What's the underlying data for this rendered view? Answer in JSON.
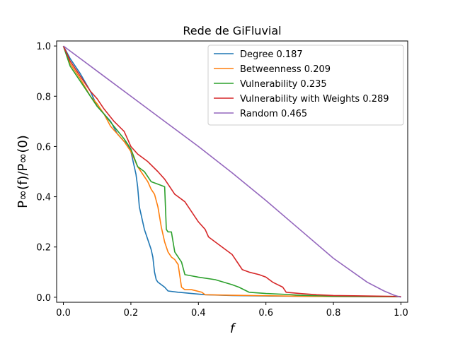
{
  "chart_data": {
    "type": "line",
    "title": "Rede de GiFluvial",
    "xlabel": "f",
    "ylabel": "P∞(f)/P∞(0)",
    "xlim": [
      -0.02,
      1.02
    ],
    "ylim": [
      -0.02,
      1.02
    ],
    "xticks": [
      0.0,
      0.2,
      0.4,
      0.6,
      0.8,
      1.0
    ],
    "xtick_labels": [
      "0.0",
      "0.2",
      "0.4",
      "0.6",
      "0.8",
      "1.0"
    ],
    "yticks": [
      0.0,
      0.2,
      0.4,
      0.6,
      0.8,
      1.0
    ],
    "ytick_labels": [
      "0.0",
      "0.2",
      "0.4",
      "0.6",
      "0.8",
      "1.0"
    ],
    "grid": false,
    "legend_position": "top-right",
    "series": [
      {
        "name": "Degree 0.187",
        "color": "#1f77b4",
        "x": [
          0,
          0.02,
          0.05,
          0.08,
          0.1,
          0.12,
          0.14,
          0.16,
          0.18,
          0.19,
          0.2,
          0.205,
          0.21,
          0.215,
          0.22,
          0.225,
          0.23,
          0.235,
          0.24,
          0.25,
          0.26,
          0.265,
          0.27,
          0.275,
          0.28,
          0.3,
          0.31,
          0.34,
          0.38,
          0.42,
          0.5,
          0.6,
          0.7,
          0.8,
          1.0
        ],
        "y": [
          1.0,
          0.95,
          0.89,
          0.82,
          0.76,
          0.73,
          0.7,
          0.65,
          0.62,
          0.61,
          0.58,
          0.55,
          0.52,
          0.49,
          0.44,
          0.36,
          0.33,
          0.3,
          0.27,
          0.23,
          0.19,
          0.16,
          0.1,
          0.07,
          0.06,
          0.04,
          0.025,
          0.02,
          0.015,
          0.01,
          0.007,
          0.005,
          0.004,
          0.003,
          0.002
        ]
      },
      {
        "name": "Betweenness 0.209",
        "color": "#ff7f0e",
        "x": [
          0,
          0.02,
          0.05,
          0.08,
          0.1,
          0.12,
          0.14,
          0.16,
          0.18,
          0.2,
          0.21,
          0.22,
          0.24,
          0.25,
          0.26,
          0.27,
          0.28,
          0.29,
          0.3,
          0.31,
          0.32,
          0.33,
          0.34,
          0.35,
          0.36,
          0.38,
          0.41,
          0.42,
          0.5,
          0.6,
          0.7,
          0.8,
          1.0
        ],
        "y": [
          1.0,
          0.93,
          0.87,
          0.8,
          0.77,
          0.73,
          0.68,
          0.65,
          0.62,
          0.58,
          0.55,
          0.52,
          0.48,
          0.46,
          0.43,
          0.41,
          0.36,
          0.28,
          0.22,
          0.18,
          0.16,
          0.15,
          0.13,
          0.04,
          0.03,
          0.03,
          0.02,
          0.01,
          0.008,
          0.006,
          0.004,
          0.003,
          0.002
        ]
      },
      {
        "name": "Vulnerability 0.235",
        "color": "#2ca02c",
        "x": [
          0,
          0.02,
          0.05,
          0.08,
          0.1,
          0.12,
          0.15,
          0.18,
          0.2,
          0.22,
          0.24,
          0.26,
          0.28,
          0.3,
          0.305,
          0.31,
          0.32,
          0.33,
          0.34,
          0.35,
          0.36,
          0.38,
          0.4,
          0.45,
          0.5,
          0.52,
          0.55,
          0.6,
          0.65,
          0.7,
          0.75,
          0.8,
          1.0
        ],
        "y": [
          1.0,
          0.92,
          0.86,
          0.8,
          0.76,
          0.73,
          0.68,
          0.63,
          0.59,
          0.52,
          0.5,
          0.46,
          0.45,
          0.44,
          0.27,
          0.26,
          0.26,
          0.18,
          0.16,
          0.14,
          0.09,
          0.085,
          0.08,
          0.07,
          0.05,
          0.04,
          0.02,
          0.015,
          0.012,
          0.008,
          0.006,
          0.004,
          0.002
        ]
      },
      {
        "name": "Vulnerability with Weights 0.289",
        "color": "#d62728",
        "x": [
          0,
          0.02,
          0.05,
          0.08,
          0.1,
          0.12,
          0.15,
          0.18,
          0.2,
          0.22,
          0.25,
          0.28,
          0.3,
          0.33,
          0.36,
          0.4,
          0.42,
          0.43,
          0.45,
          0.47,
          0.5,
          0.52,
          0.53,
          0.55,
          0.58,
          0.6,
          0.62,
          0.65,
          0.66,
          0.7,
          0.75,
          0.8,
          1.0
        ],
        "y": [
          1.0,
          0.94,
          0.88,
          0.82,
          0.79,
          0.75,
          0.7,
          0.66,
          0.6,
          0.57,
          0.54,
          0.5,
          0.47,
          0.41,
          0.38,
          0.3,
          0.27,
          0.24,
          0.22,
          0.2,
          0.17,
          0.13,
          0.11,
          0.1,
          0.09,
          0.08,
          0.06,
          0.04,
          0.02,
          0.015,
          0.01,
          0.007,
          0.003
        ]
      },
      {
        "name": "Random 0.465",
        "color": "#9467bd",
        "x": [
          0,
          0.1,
          0.2,
          0.3,
          0.4,
          0.5,
          0.6,
          0.7,
          0.8,
          0.9,
          0.95,
          0.98,
          1.0
        ],
        "y": [
          1.0,
          0.9,
          0.8,
          0.7,
          0.6,
          0.495,
          0.385,
          0.27,
          0.155,
          0.06,
          0.025,
          0.008,
          0.0
        ]
      }
    ]
  }
}
